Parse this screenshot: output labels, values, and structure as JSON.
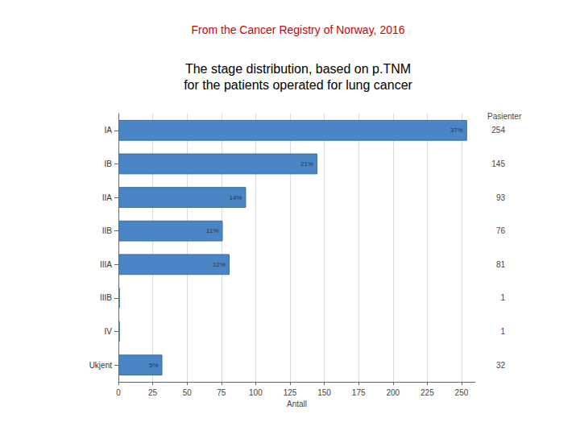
{
  "chart_data": {
    "type": "bar",
    "orientation": "horizontal",
    "title": "From the Cancer Registry of Norway, 2016",
    "subtitle": "The stage distribution, based on p.TNM\nfor the patients operated for lung cancer",
    "categories": [
      "IA",
      "IB",
      "IIA",
      "IIB",
      "IIIA",
      "IIIB",
      "IV",
      "Ukjent"
    ],
    "values": [
      254,
      145,
      93,
      76,
      81,
      1,
      1,
      32
    ],
    "percent_labels": [
      "37%",
      "21%",
      "14%",
      "11%",
      "12%",
      null,
      null,
      "5%"
    ],
    "value_header": "Pasienter",
    "xlabel": "Antall",
    "color": "#4a86c6",
    "xlim": [
      0,
      260
    ],
    "xticks": [
      0,
      25,
      50,
      75,
      100,
      125,
      150,
      175,
      200,
      225,
      250
    ],
    "grid": true,
    "data_labels": true
  }
}
